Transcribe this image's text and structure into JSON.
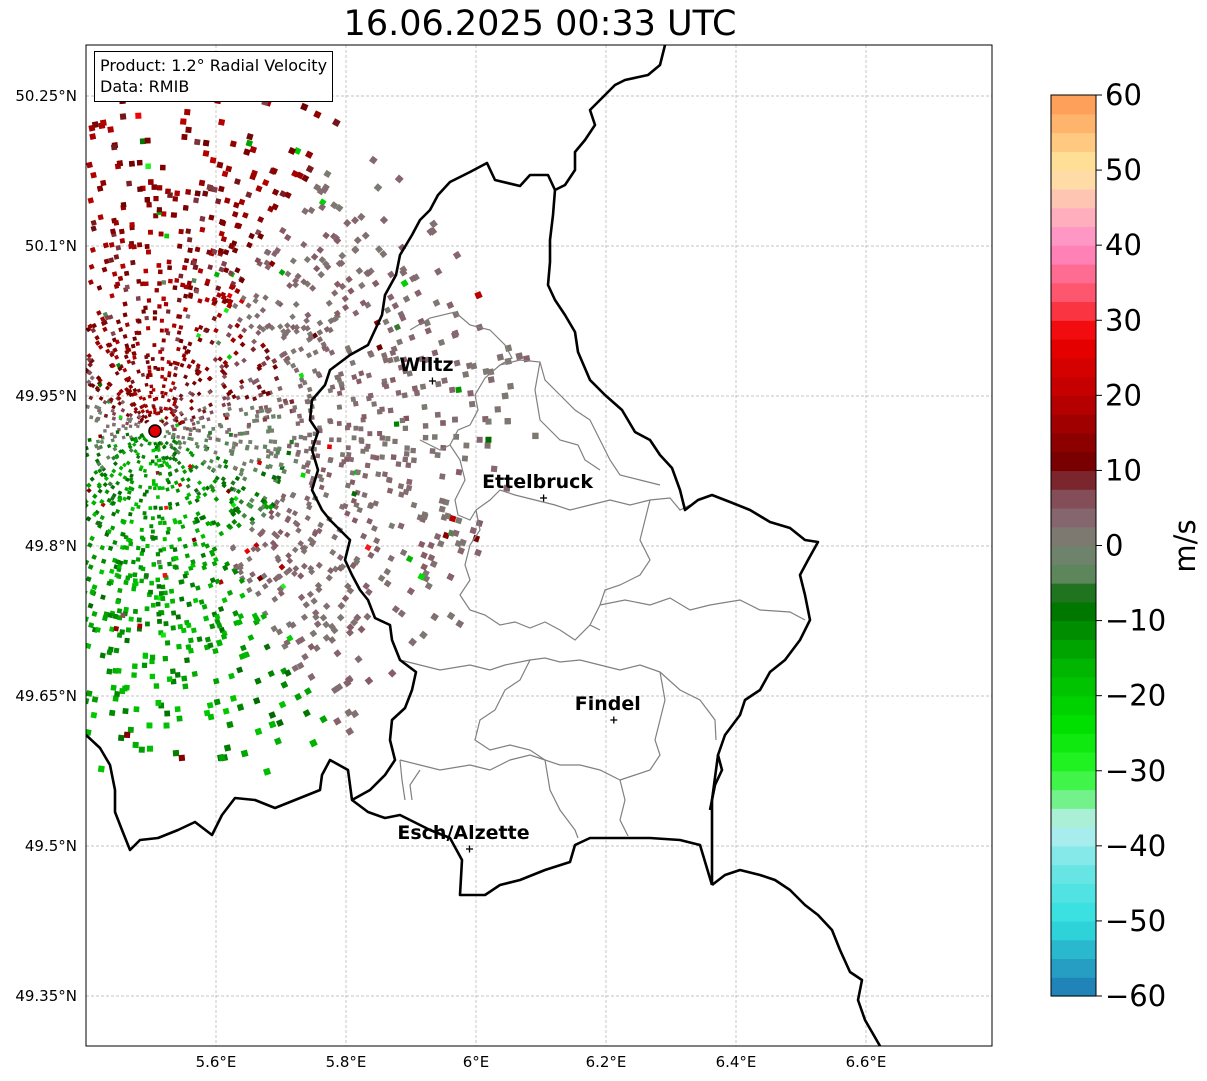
{
  "title": "16.06.2025 00:33 UTC",
  "info": {
    "product": "Product: 1.2° Radial Velocity",
    "data": "Data: RMIB"
  },
  "map": {
    "lon_range": [
      5.4,
      6.8
    ],
    "lat_range": [
      49.3,
      50.3
    ],
    "lon_ticks": [
      {
        "value": 5.6,
        "label": "5.6°E"
      },
      {
        "value": 5.8,
        "label": "5.8°E"
      },
      {
        "value": 6.0,
        "label": "6°E"
      },
      {
        "value": 6.2,
        "label": "6.2°E"
      },
      {
        "value": 6.4,
        "label": "6.4°E"
      },
      {
        "value": 6.6,
        "label": "6.6°E"
      }
    ],
    "lat_ticks": [
      {
        "value": 50.25,
        "label": "50.25°N"
      },
      {
        "value": 50.1,
        "label": "50.1°N"
      },
      {
        "value": 49.95,
        "label": "49.95°N"
      },
      {
        "value": 49.8,
        "label": "49.8°N"
      },
      {
        "value": 49.65,
        "label": "49.65°N"
      },
      {
        "value": 49.5,
        "label": "49.5°N"
      },
      {
        "value": 49.35,
        "label": "49.35°N"
      }
    ],
    "grid": true,
    "radar_site": {
      "lon": 5.505,
      "lat": 49.915
    },
    "cities": [
      {
        "name": "Wiltz",
        "lon": 5.933,
        "lat": 49.965
      },
      {
        "name": "Ettelbruck",
        "lon": 6.104,
        "lat": 49.848
      },
      {
        "name": "Findel",
        "lon": 6.212,
        "lat": 49.626
      },
      {
        "name": "Esch/Alzette",
        "lon": 5.99,
        "lat": 49.497
      }
    ]
  },
  "colorbar": {
    "label": "m/s",
    "min": -60,
    "max": 60,
    "ticks": [
      {
        "value": 60,
        "label": "60"
      },
      {
        "value": 50,
        "label": "50"
      },
      {
        "value": 40,
        "label": "40"
      },
      {
        "value": 30,
        "label": "30"
      },
      {
        "value": 20,
        "label": "20"
      },
      {
        "value": 10,
        "label": "10"
      },
      {
        "value": 0,
        "label": "0"
      },
      {
        "value": -10,
        "label": "−10"
      },
      {
        "value": -20,
        "label": "−20"
      },
      {
        "value": -30,
        "label": "−30"
      },
      {
        "value": -40,
        "label": "−40"
      },
      {
        "value": -50,
        "label": "−50"
      },
      {
        "value": -60,
        "label": "−60"
      }
    ]
  }
}
